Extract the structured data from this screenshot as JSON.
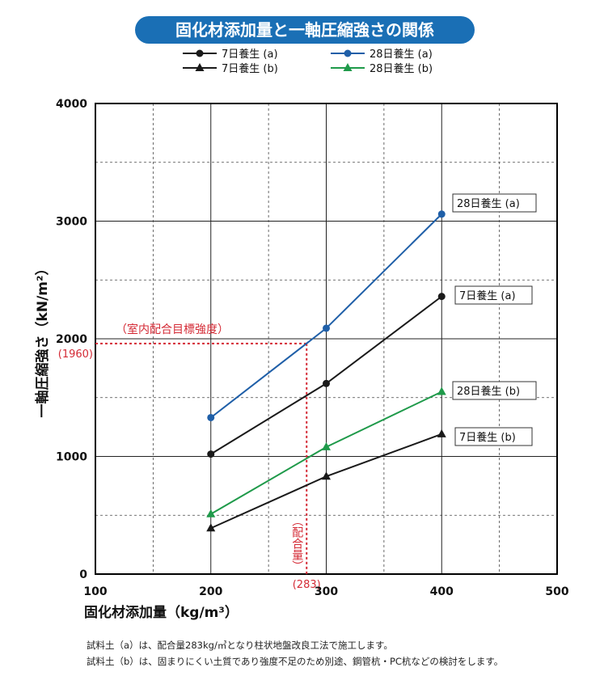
{
  "chart_data": {
    "type": "line",
    "title": "固化材添加量と一軸圧縮強さの関係",
    "xlabel": "固化材添加量（kg/m³）",
    "ylabel": "一軸圧縮強さ（kN/m²）",
    "xlim": [
      100,
      500
    ],
    "ylim": [
      0,
      4000
    ],
    "x_ticks": [
      "100",
      "200",
      "300",
      "400",
      "500"
    ],
    "y_ticks": [
      "0",
      "1000",
      "2000",
      "3000",
      "4000"
    ],
    "grid": true,
    "legend_position": "top-center",
    "series": [
      {
        "name": "7日養生 (a)",
        "label": "7日養生 (a)",
        "color": "#1a1a1a",
        "marker": "circle",
        "x": [
          200,
          300,
          400
        ],
        "y": [
          1020,
          1620,
          2360
        ]
      },
      {
        "name": "28日養生 (a)",
        "label": "28日養生 (a)",
        "color": "#1f5fa8",
        "marker": "circle",
        "x": [
          200,
          300,
          400
        ],
        "y": [
          1330,
          2090,
          3060
        ]
      },
      {
        "name": "7日養生 (b)",
        "label": "7日養生 (b)",
        "color": "#1a1a1a",
        "marker": "triangle",
        "x": [
          200,
          300,
          400
        ],
        "y": [
          390,
          830,
          1190
        ]
      },
      {
        "name": "28日養生 (b)",
        "label": "28日養生 (b)",
        "color": "#1f9a4a",
        "marker": "triangle",
        "x": [
          200,
          300,
          400
        ],
        "y": [
          510,
          1080,
          1550
        ]
      }
    ],
    "reference": {
      "color": "#d42a35",
      "target_label": "（室内配合目標強度）",
      "target_value": 1960,
      "target_value_label": "(1960)",
      "mix_label": "（配合量）",
      "mix_value": 283,
      "mix_value_label": "(283)"
    }
  },
  "notes": [
    "試料土（a）は、配合量283kg/㎥となり柱状地盤改良工法で施工します。",
    "試料土（b）は、固まりにくい土質であり強度不足のため別途、鋼管杭・PC杭などの検討をします。"
  ]
}
